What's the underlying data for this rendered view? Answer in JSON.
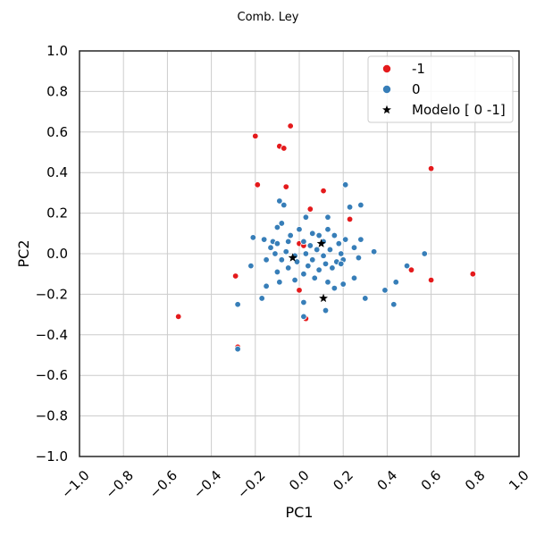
{
  "chart_data": {
    "type": "scatter",
    "title": "Comb. Ley",
    "xlabel": "PC1",
    "ylabel": "PC2",
    "xlim": [
      -1.0,
      1.0
    ],
    "ylim": [
      -1.0,
      1.0
    ],
    "xticks": [
      "−1.0",
      "−0.8",
      "−0.6",
      "−0.4",
      "−0.2",
      "0.0",
      "0.2",
      "0.4",
      "0.6",
      "0.8",
      "1.0"
    ],
    "yticks": [
      "−1.0",
      "−0.8",
      "−0.6",
      "−0.4",
      "−0.2",
      "0.0",
      "0.2",
      "0.4",
      "0.6",
      "0.8",
      "1.0"
    ],
    "grid": true,
    "legend_position": "top-right",
    "series": [
      {
        "name": "-1",
        "color": "#e41a1c",
        "marker": "circle",
        "points": [
          [
            -0.04,
            0.63
          ],
          [
            -0.2,
            0.58
          ],
          [
            -0.09,
            0.53
          ],
          [
            -0.07,
            0.52
          ],
          [
            0.6,
            0.42
          ],
          [
            -0.19,
            0.34
          ],
          [
            -0.06,
            0.33
          ],
          [
            0.11,
            0.31
          ],
          [
            0.05,
            0.22
          ],
          [
            0.23,
            0.17
          ],
          [
            0.0,
            0.05
          ],
          [
            0.02,
            0.04
          ],
          [
            0.51,
            -0.08
          ],
          [
            0.79,
            -0.1
          ],
          [
            -0.29,
            -0.11
          ],
          [
            0.6,
            -0.13
          ],
          [
            0.0,
            -0.18
          ],
          [
            0.03,
            -0.32
          ],
          [
            -0.55,
            -0.31
          ],
          [
            -0.28,
            -0.46
          ]
        ]
      },
      {
        "name": "0",
        "color": "#377eb8",
        "marker": "circle",
        "points": [
          [
            0.21,
            0.34
          ],
          [
            -0.09,
            0.26
          ],
          [
            -0.07,
            0.24
          ],
          [
            0.23,
            0.23
          ],
          [
            0.28,
            0.24
          ],
          [
            0.13,
            0.18
          ],
          [
            0.03,
            0.18
          ],
          [
            -0.08,
            0.15
          ],
          [
            -0.1,
            0.13
          ],
          [
            0.0,
            0.12
          ],
          [
            0.13,
            0.12
          ],
          [
            0.06,
            0.1
          ],
          [
            -0.04,
            0.09
          ],
          [
            0.09,
            0.09
          ],
          [
            0.16,
            0.09
          ],
          [
            -0.21,
            0.08
          ],
          [
            -0.16,
            0.07
          ],
          [
            0.28,
            0.07
          ],
          [
            0.21,
            0.07
          ],
          [
            -0.12,
            0.06
          ],
          [
            -0.05,
            0.06
          ],
          [
            0.02,
            0.06
          ],
          [
            0.11,
            0.06
          ],
          [
            0.18,
            0.05
          ],
          [
            -0.1,
            0.05
          ],
          [
            0.05,
            0.04
          ],
          [
            0.25,
            0.03
          ],
          [
            -0.13,
            0.03
          ],
          [
            0.34,
            0.01
          ],
          [
            0.57,
            0.0
          ],
          [
            -0.06,
            0.01
          ],
          [
            0.08,
            0.02
          ],
          [
            0.14,
            0.02
          ],
          [
            -0.11,
            0.0
          ],
          [
            0.19,
            0.0
          ],
          [
            0.03,
            0.0
          ],
          [
            -0.02,
            -0.01
          ],
          [
            0.11,
            -0.01
          ],
          [
            0.27,
            -0.02
          ],
          [
            0.2,
            -0.03
          ],
          [
            -0.15,
            -0.03
          ],
          [
            -0.08,
            -0.03
          ],
          [
            0.06,
            -0.03
          ],
          [
            0.17,
            -0.04
          ],
          [
            -0.01,
            -0.04
          ],
          [
            0.12,
            -0.05
          ],
          [
            0.04,
            -0.06
          ],
          [
            -0.22,
            -0.06
          ],
          [
            0.49,
            -0.06
          ],
          [
            0.19,
            -0.05
          ],
          [
            0.15,
            -0.07
          ],
          [
            -0.05,
            -0.07
          ],
          [
            0.09,
            -0.08
          ],
          [
            -0.1,
            -0.09
          ],
          [
            0.02,
            -0.1
          ],
          [
            0.25,
            -0.12
          ],
          [
            0.07,
            -0.12
          ],
          [
            -0.02,
            -0.13
          ],
          [
            0.13,
            -0.14
          ],
          [
            -0.09,
            -0.14
          ],
          [
            0.44,
            -0.14
          ],
          [
            0.2,
            -0.15
          ],
          [
            -0.15,
            -0.16
          ],
          [
            0.16,
            -0.17
          ],
          [
            0.39,
            -0.18
          ],
          [
            -0.17,
            -0.22
          ],
          [
            0.3,
            -0.22
          ],
          [
            0.02,
            -0.24
          ],
          [
            -0.28,
            -0.25
          ],
          [
            0.43,
            -0.25
          ],
          [
            0.12,
            -0.28
          ],
          [
            0.02,
            -0.31
          ],
          [
            -0.28,
            -0.47
          ]
        ]
      },
      {
        "name": "Modelo [ 0 -1]",
        "color": "#000000",
        "marker": "star",
        "points": [
          [
            0.1,
            0.05
          ],
          [
            -0.03,
            -0.02
          ],
          [
            0.11,
            -0.22
          ]
        ]
      }
    ]
  }
}
